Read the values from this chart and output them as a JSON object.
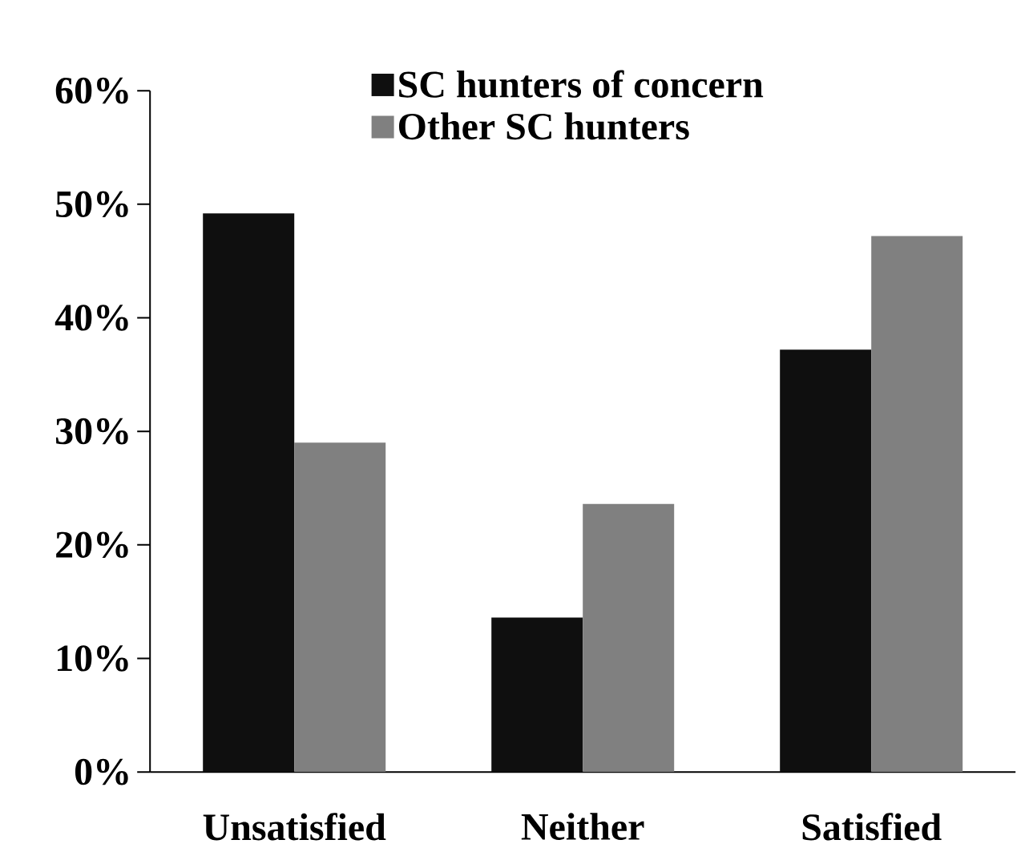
{
  "chart_data": {
    "type": "bar",
    "categories": [
      "Unsatisfied",
      "Neither",
      "Satisfied"
    ],
    "series": [
      {
        "name": "SC hunters of concern",
        "color": "#0f0f0f",
        "values": [
          49.2,
          13.6,
          37.2
        ]
      },
      {
        "name": "Other SC hunters",
        "color": "#808080",
        "values": [
          29.0,
          23.6,
          47.2
        ]
      }
    ],
    "ylim": [
      0,
      60
    ],
    "yticks": [
      {
        "value": 0,
        "label": "0%"
      },
      {
        "value": 10,
        "label": "10%"
      },
      {
        "value": 20,
        "label": "20%"
      },
      {
        "value": 30,
        "label": "30%"
      },
      {
        "value": 40,
        "label": "40%"
      },
      {
        "value": 50,
        "label": "50%"
      },
      {
        "value": 60,
        "label": "60%"
      }
    ],
    "grid": false,
    "legend": "top"
  }
}
